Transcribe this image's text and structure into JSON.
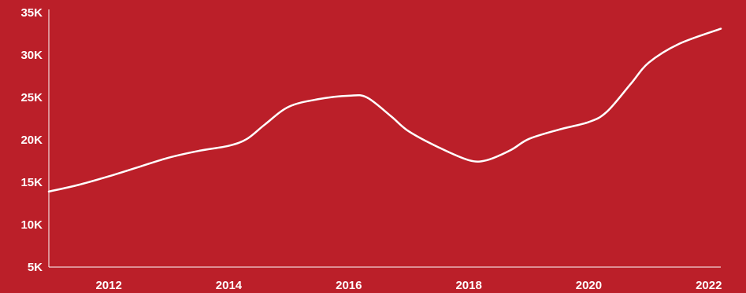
{
  "colors": {
    "background": "#bb1f29",
    "line": "#ffffff",
    "axis": "#ffffff",
    "text": "#ffffff"
  },
  "chart_data": {
    "type": "line",
    "title": "",
    "xlabel": "",
    "ylabel": "",
    "grid": false,
    "legend": "none",
    "xlim": [
      2011,
      2022.2
    ],
    "ylim": [
      5000,
      35000
    ],
    "x_ticks": [
      {
        "value": 2012,
        "label": "2012"
      },
      {
        "value": 2014,
        "label": "2014"
      },
      {
        "value": 2016,
        "label": "2016"
      },
      {
        "value": 2018,
        "label": "2018"
      },
      {
        "value": 2020,
        "label": "2020"
      },
      {
        "value": 2022,
        "label": "2022"
      }
    ],
    "y_ticks": [
      {
        "value": 5000,
        "label": "5K"
      },
      {
        "value": 10000,
        "label": "10K"
      },
      {
        "value": 15000,
        "label": "15K"
      },
      {
        "value": 20000,
        "label": "20K"
      },
      {
        "value": 25000,
        "label": "25K"
      },
      {
        "value": 30000,
        "label": "30K"
      },
      {
        "value": 35000,
        "label": "35K"
      }
    ],
    "series": [
      {
        "x": [
          2011,
          2011.5,
          2012,
          2012.5,
          2013,
          2013.5,
          2014,
          2014.3,
          2014.6,
          2015,
          2015.5,
          2016,
          2016.3,
          2016.7,
          2017,
          2017.5,
          2018,
          2018.3,
          2018.7,
          2019,
          2019.5,
          2020,
          2020.3,
          2020.7,
          2021,
          2021.5,
          2022.2
        ],
        "y": [
          13900,
          14700,
          15700,
          16800,
          17900,
          18700,
          19300,
          20100,
          21800,
          23900,
          24800,
          25200,
          25000,
          22800,
          21000,
          19100,
          17600,
          17600,
          18800,
          20100,
          21200,
          22100,
          23300,
          26600,
          29100,
          31300,
          33100
        ]
      }
    ]
  }
}
